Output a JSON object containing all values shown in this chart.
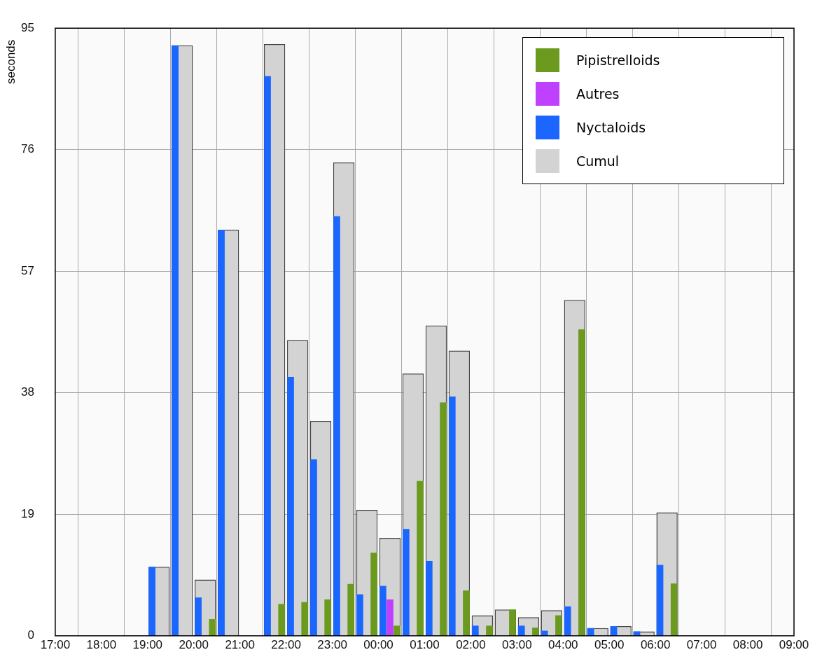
{
  "chart_data": {
    "type": "bar",
    "ylabel": "seconds",
    "x": [
      "--06-01T19:15",
      "--06-01T19:45",
      "--06-01T20:15",
      "--06-01T20:45",
      "--06-01T21:45",
      "--06-01T22:15",
      "--06-01T22:45",
      "--06-01T23:15",
      "--06-01T23:45",
      "--06-02T00:15",
      "--06-02T00:45",
      "--06-02T01:15",
      "--06-02T01:45",
      "--06-02T02:15",
      "--06-02T02:45",
      "--06-02T03:15",
      "--06-02T03:45",
      "--06-02T04:15",
      "--06-02T04:45",
      "--06-02T05:15",
      "--06-02T05:45",
      "--06-02T06:15"
    ],
    "xlim": [
      "--06-01T17:00",
      "--06-02T09:00"
    ],
    "xticks": [
      {
        "value": "--06-01T17:00",
        "label": "17:00"
      },
      {
        "value": "--06-01T18:00",
        "label": "18:00"
      },
      {
        "value": "--06-01T19:00",
        "label": "19:00"
      },
      {
        "value": "--06-01T20:00",
        "label": "20:00"
      },
      {
        "value": "--06-01T21:00",
        "label": "21:00"
      },
      {
        "value": "--06-01T22:00",
        "label": "22:00"
      },
      {
        "value": "--06-01T23:00",
        "label": "23:00"
      },
      {
        "value": "--06-02T00:00",
        "label": "00:00"
      },
      {
        "value": "--06-02T01:00",
        "label": "01:00"
      },
      {
        "value": "--06-02T02:00",
        "label": "02:00"
      },
      {
        "value": "--06-02T03:00",
        "label": "03:00"
      },
      {
        "value": "--06-02T04:00",
        "label": "04:00"
      },
      {
        "value": "--06-02T05:00",
        "label": "05:00"
      },
      {
        "value": "--06-02T06:00",
        "label": "06:00"
      },
      {
        "value": "--06-02T07:00",
        "label": "07:00"
      },
      {
        "value": "--06-02T08:00",
        "label": "08:00"
      },
      {
        "value": "--06-02T09:00",
        "label": "09:00"
      }
    ],
    "ylim": [
      0,
      95
    ],
    "yticks": [
      0,
      19,
      38,
      57,
      76,
      95
    ],
    "grid": true,
    "legend": "top right",
    "series": [
      {
        "name": "Pipistrelloids",
        "color": "#6b9a1e",
        "values": [
          null,
          null,
          2.6,
          null,
          5,
          5.3,
          5.7,
          8.1,
          13,
          1.6,
          24.2,
          36.5,
          7.1,
          1.6,
          4.1,
          1.3,
          3.2,
          47.9,
          null,
          null,
          null,
          8.2
        ]
      },
      {
        "name": "Autres",
        "color": "#bf40ff",
        "values": [
          null,
          null,
          null,
          null,
          null,
          null,
          null,
          null,
          null,
          5.7,
          null,
          null,
          null,
          null,
          null,
          null,
          null,
          null,
          null,
          null,
          null,
          null
        ]
      },
      {
        "name": "Nyctaloids",
        "color": "#1a66ff",
        "values": [
          10.8,
          92.3,
          6,
          63.5,
          87.5,
          40.5,
          27.6,
          65.6,
          6.5,
          7.8,
          16.7,
          11.7,
          37.4,
          1.6,
          null,
          1.6,
          0.8,
          4.6,
          1.2,
          1.5,
          0.7,
          11.1
        ]
      },
      {
        "name": "Cumul",
        "color": "#d3d3d3",
        "values": [
          10.8,
          92.3,
          8.8,
          63.5,
          92.5,
          46.2,
          33.6,
          74,
          19.7,
          15.3,
          41,
          48.5,
          44.6,
          3.2,
          4.1,
          2.9,
          4,
          52.5,
          1.2,
          1.5,
          0.7,
          19.3
        ]
      }
    ]
  }
}
